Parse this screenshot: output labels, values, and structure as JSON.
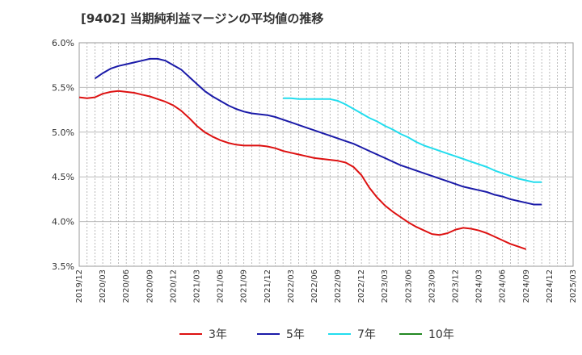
{
  "chart_data": {
    "type": "line",
    "title": "[9402]  当期純利益マージンの平均値の推移",
    "xlabel": "",
    "ylabel": "",
    "ylim": [
      3.5,
      6.0
    ],
    "yticks": [
      "6.0%",
      "5.5%",
      "5.0%",
      "4.5%",
      "4.0%",
      "3.5%"
    ],
    "xticks": [
      "2019/12",
      "2020/03",
      "2020/06",
      "2020/09",
      "2020/12",
      "2021/03",
      "2021/06",
      "2021/09",
      "2021/12",
      "2022/03",
      "2022/06",
      "2022/09",
      "2022/12",
      "2023/03",
      "2023/06",
      "2023/09",
      "2023/12",
      "2024/03",
      "2024/06",
      "2024/09",
      "2024/12",
      "2025/03"
    ],
    "grid": true,
    "legend_position": "bottom",
    "series": [
      {
        "name": "3年",
        "color": "#dd1111",
        "start": "2019/12",
        "values": [
          5.39,
          5.38,
          5.39,
          5.43,
          5.45,
          5.46,
          5.45,
          5.44,
          5.42,
          5.4,
          5.37,
          5.34,
          5.3,
          5.24,
          5.16,
          5.07,
          5.0,
          4.95,
          4.91,
          4.88,
          4.86,
          4.85,
          4.85,
          4.85,
          4.84,
          4.82,
          4.79,
          4.77,
          4.75,
          4.73,
          4.71,
          4.7,
          4.69,
          4.68,
          4.66,
          4.61,
          4.52,
          4.38,
          4.27,
          4.18,
          4.11,
          4.05,
          3.99,
          3.94,
          3.9,
          3.86,
          3.85,
          3.87,
          3.91,
          3.93,
          3.92,
          3.9,
          3.87,
          3.83,
          3.79,
          3.75,
          3.72,
          3.69
        ]
      },
      {
        "name": "5年",
        "color": "#1a1aa8",
        "start": "2020/02",
        "values": [
          5.6,
          5.66,
          5.71,
          5.74,
          5.76,
          5.78,
          5.8,
          5.82,
          5.82,
          5.8,
          5.75,
          5.7,
          5.62,
          5.54,
          5.46,
          5.4,
          5.35,
          5.3,
          5.26,
          5.23,
          5.21,
          5.2,
          5.19,
          5.17,
          5.14,
          5.11,
          5.08,
          5.05,
          5.02,
          4.99,
          4.96,
          4.93,
          4.9,
          4.87,
          4.83,
          4.79,
          4.75,
          4.71,
          4.67,
          4.63,
          4.6,
          4.57,
          4.54,
          4.51,
          4.48,
          4.45,
          4.42,
          4.39,
          4.37,
          4.35,
          4.33,
          4.3,
          4.28,
          4.25,
          4.23,
          4.21,
          4.19,
          4.19
        ]
      },
      {
        "name": "7年",
        "color": "#22ddee",
        "start": "2022/02",
        "values": [
          5.38,
          5.38,
          5.37,
          5.37,
          5.37,
          5.37,
          5.37,
          5.35,
          5.31,
          5.26,
          5.21,
          5.16,
          5.12,
          5.07,
          5.03,
          4.98,
          4.94,
          4.89,
          4.85,
          4.82,
          4.79,
          4.76,
          4.73,
          4.7,
          4.67,
          4.64,
          4.61,
          4.57,
          4.54,
          4.51,
          4.48,
          4.46,
          4.44,
          4.44
        ]
      },
      {
        "name": "10年",
        "color": "#228822",
        "start": "",
        "values": []
      }
    ]
  }
}
